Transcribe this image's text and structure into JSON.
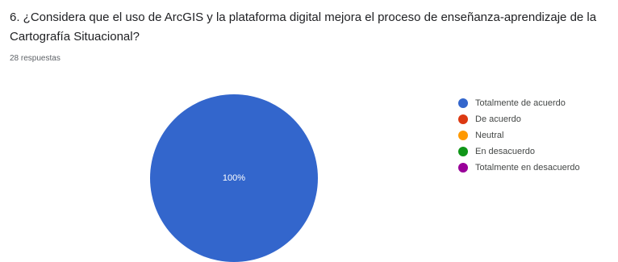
{
  "question": {
    "title": "6.  ¿Considera que el uso de ArcGIS y la plataforma digital mejora el proceso de enseñanza-aprendizaje de la Cartografía Situacional?",
    "responses": "28 respuestas"
  },
  "chart_data": {
    "type": "pie",
    "categories": [
      "Totalmente de acuerdo",
      "De acuerdo",
      "Neutral",
      "En desacuerdo",
      "Totalmente en desacuerdo"
    ],
    "values": [
      100,
      0,
      0,
      0,
      0
    ],
    "colors": [
      "#3366cc",
      "#dc3912",
      "#ff9900",
      "#109618",
      "#990099"
    ],
    "data_labels": [
      "100%"
    ],
    "legend_position": "right"
  }
}
